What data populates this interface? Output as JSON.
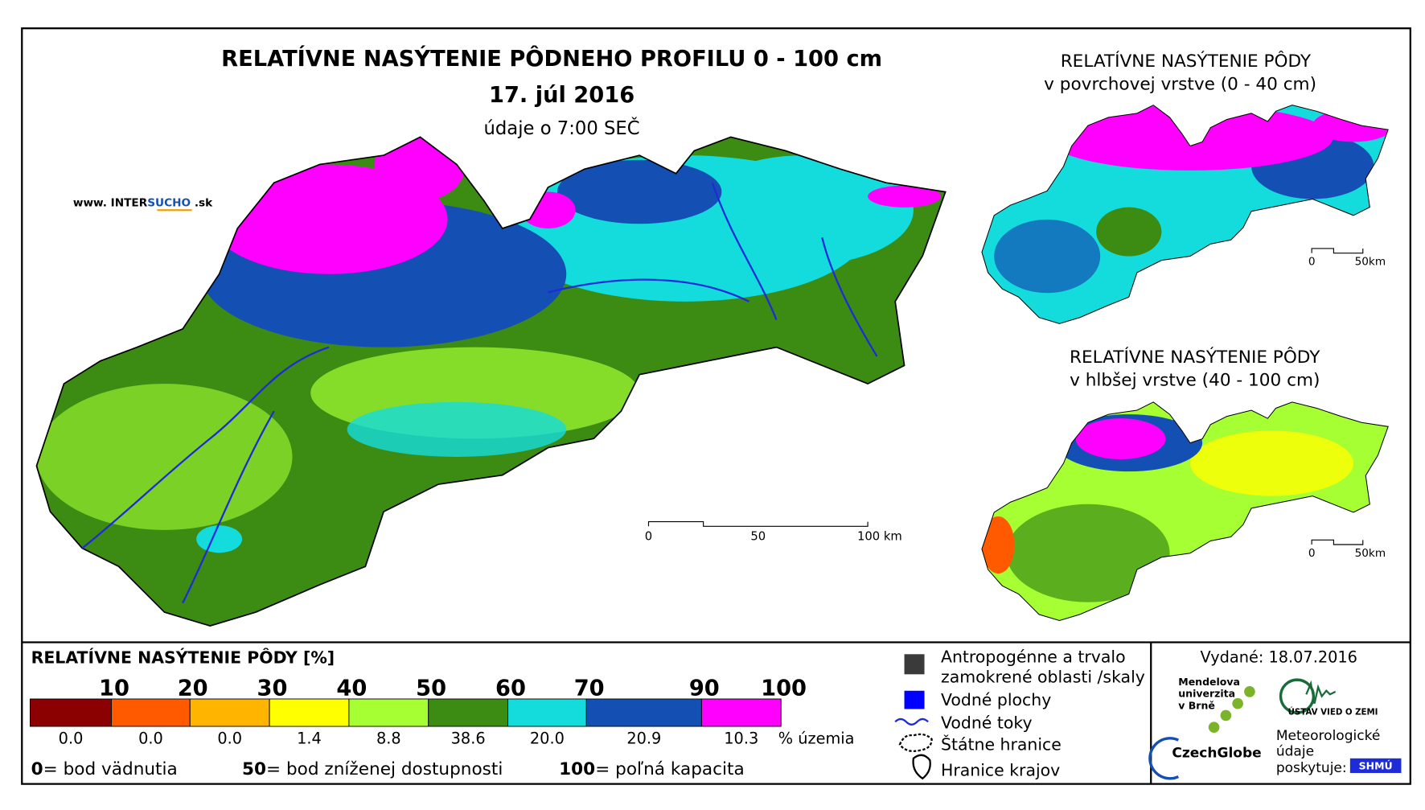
{
  "header": {
    "title": "RELATÍVNE NASÝTENIE PÔDNEHO PROFILU 0 - 100 cm",
    "date": "17. júl 2016",
    "note": "údaje o 7:00 SEČ",
    "website": {
      "prefix": "www. INTER",
      "highlight": "SUCHO",
      "suffix": " .sk"
    }
  },
  "main_map": {
    "scale": [
      "0",
      "50",
      "100 km"
    ]
  },
  "insets": [
    {
      "title": [
        "RELATÍVNE NASÝTENIE PÔDY",
        "v povrchovej vrstve (0 - 40 cm)"
      ],
      "scale": [
        "0",
        "50km"
      ]
    },
    {
      "title": [
        "RELATÍVNE NASÝTENIE PÔDY",
        "v hlbšej vrstve (40 - 100 cm)"
      ],
      "scale": [
        "0",
        "50km"
      ]
    }
  ],
  "legend": {
    "title": "RELATÍVNE NASÝTENIE PÔDY [%]",
    "ticks": [
      "10",
      "20",
      "30",
      "40",
      "50",
      "60",
      "70",
      "90",
      "100"
    ],
    "classes": [
      {
        "color": "#8b0000",
        "share": "0.0"
      },
      {
        "color": "#ff5a00",
        "share": "0.0"
      },
      {
        "color": "#ffb400",
        "share": "0.0"
      },
      {
        "color": "#ffff00",
        "share": "1.4"
      },
      {
        "color": "#a5ff32",
        "share": "8.8"
      },
      {
        "color": "#3c8c14",
        "share": "38.6"
      },
      {
        "color": "#14dcdc",
        "share": "20.0"
      },
      {
        "color": "#1450b4",
        "share": "20.9"
      },
      {
        "color": "#ff00ff",
        "share": "10.3"
      }
    ],
    "share_unit": "% územia",
    "notes": [
      {
        "key": "0",
        "text": "= bod vädnutia"
      },
      {
        "key": "50",
        "text": "= bod zníženej dostupnosti"
      },
      {
        "key": "100",
        "text": "= poľná kapacita"
      }
    ]
  },
  "map_legend": [
    {
      "lines": [
        "Antropogénne a trvalo",
        "zamokrené oblasti /skaly"
      ]
    },
    {
      "lines": [
        "Vodné plochy"
      ]
    },
    {
      "lines": [
        "Vodné toky"
      ]
    },
    {
      "lines": [
        "Štátne hranice"
      ]
    },
    {
      "lines": [
        "Hranice krajov"
      ]
    }
  ],
  "footer": {
    "issued": "Vydané: 18.07.2016",
    "mendel": [
      "Mendelova",
      "univerzita",
      "v Brně"
    ],
    "czechglobe": "CzechGlobe",
    "ustav": "ÚSTAV VIED O ZEMI",
    "meteo": [
      "Meteorologické",
      "údaje",
      "poskytuje:"
    ],
    "shmu": "SHMÚ"
  }
}
